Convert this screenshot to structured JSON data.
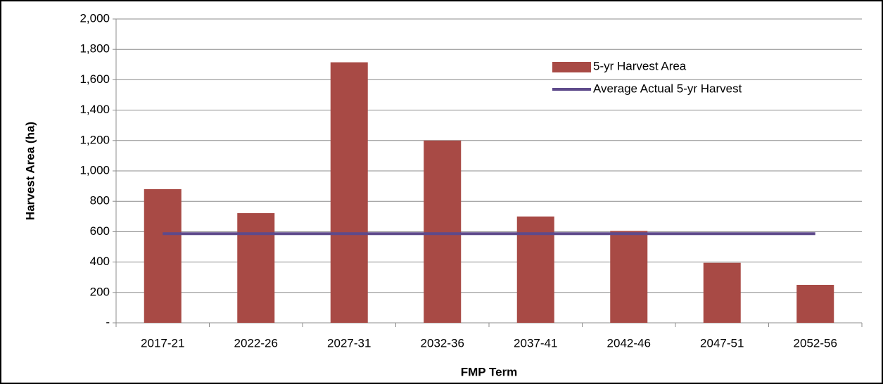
{
  "chart_data": {
    "type": "bar",
    "x_label": "FMP Term",
    "y_label": "Harvest Area (ha)",
    "categories": [
      "2017-21",
      "2022-26",
      "2027-31",
      "2032-36",
      "2037-41",
      "2042-46",
      "2047-51",
      "2052-56"
    ],
    "series": [
      {
        "name": "5-yr Harvest Area",
        "type": "bar",
        "color": "#a84a45",
        "values": [
          880,
          722,
          1715,
          1200,
          700,
          605,
          395,
          250
        ]
      },
      {
        "name": "Average Actual 5-yr Harvest",
        "type": "line",
        "color": "#5e4a8b",
        "values": [
          587,
          587,
          587,
          587,
          587,
          587,
          587,
          587
        ]
      }
    ],
    "ylim": [
      0,
      2000
    ],
    "yticks": [
      {
        "value": 0,
        "label": "-"
      },
      200,
      400,
      600,
      800,
      {
        "value": 1000,
        "label": "1,000"
      },
      {
        "value": 1200,
        "label": "1,200"
      },
      {
        "value": 1400,
        "label": "1,400"
      },
      {
        "value": 1600,
        "label": "1,600"
      },
      {
        "value": 1800,
        "label": "1,800"
      },
      {
        "value": 2000,
        "label": "2,000"
      }
    ],
    "grid": true,
    "legend": "upper-right"
  }
}
